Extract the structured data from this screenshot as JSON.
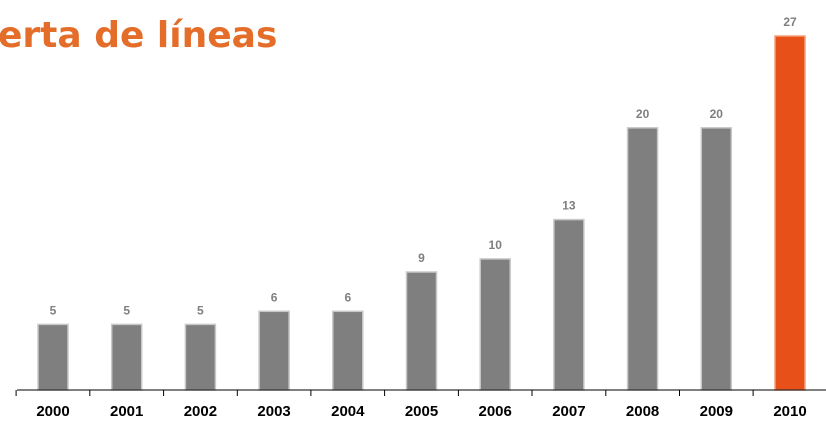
{
  "chart_data": {
    "type": "bar",
    "title": "erta de líneas",
    "xlabel": "",
    "ylabel": "",
    "categories": [
      "2000",
      "2001",
      "2002",
      "2003",
      "2004",
      "2005",
      "2006",
      "2007",
      "2008",
      "2009",
      "2010"
    ],
    "values": [
      5,
      5,
      5,
      6,
      6,
      9,
      10,
      13,
      20,
      20,
      27
    ],
    "ylim": [
      0,
      27
    ],
    "grid": false,
    "colors": {
      "bar": "#7f7f7f",
      "highlight": "#e8501a",
      "highlight_category": "2010",
      "title": "#e46d2a",
      "value_label": "#7f7f7f",
      "axis": "#000000"
    }
  }
}
